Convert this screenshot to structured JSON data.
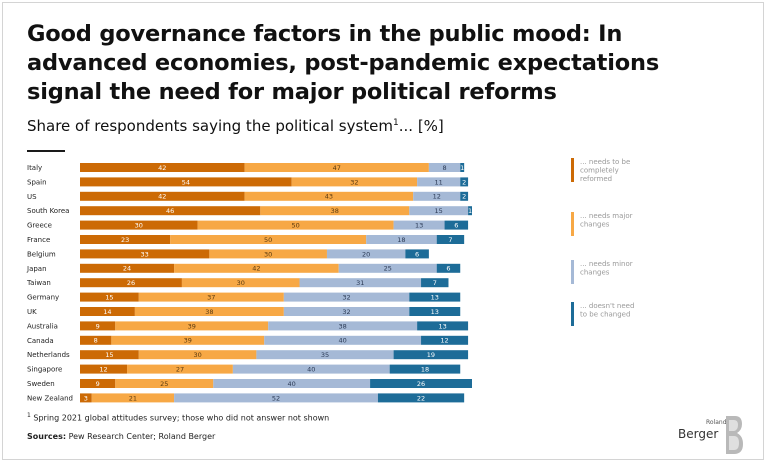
{
  "title": "Good governance factors in the public mood: In advanced economies, post-pandemic expectations signal the need for major political reforms",
  "subtitle": {
    "text": "Share of respondents saying the political system",
    "sup": "1",
    "suffix": "... [%]"
  },
  "footnote": {
    "sup": "1",
    "text": "Spring 2021 global attitudes survey; those who did not answer not shown"
  },
  "sources": {
    "label": "Sources:",
    "text": "Pew Research Center; Roland Berger"
  },
  "logo": {
    "roland": "Roland",
    "berger": "Berger",
    "mark_icon": "roland-berger-b-logo"
  },
  "colors": {
    "completely": "#cc6a05",
    "major": "#f7a845",
    "minor": "#a5b9d6",
    "none": "#1d6c98"
  },
  "chart_data": {
    "type": "bar",
    "orientation": "horizontal",
    "stacked": true,
    "categories": [
      "Italy",
      "Spain",
      "US",
      "South Korea",
      "Greece",
      "France",
      "Belgium",
      "Japan",
      "Taiwan",
      "Germany",
      "UK",
      "Australia",
      "Canada",
      "Netherlands",
      "Singapore",
      "Sweden",
      "New Zealand"
    ],
    "series": [
      {
        "key": "completely",
        "name": "... needs to be completely reformed",
        "values": [
          42,
          54,
          42,
          46,
          30,
          23,
          33,
          24,
          26,
          15,
          14,
          9,
          8,
          15,
          12,
          9,
          3
        ]
      },
      {
        "key": "major",
        "name": "... needs major changes",
        "values": [
          47,
          32,
          43,
          38,
          50,
          50,
          30,
          42,
          30,
          37,
          38,
          39,
          39,
          30,
          27,
          25,
          21
        ]
      },
      {
        "key": "minor",
        "name": "... needs minor changes",
        "values": [
          8,
          11,
          12,
          15,
          13,
          18,
          20,
          25,
          31,
          32,
          32,
          38,
          40,
          35,
          40,
          40,
          52
        ]
      },
      {
        "key": "none",
        "name": "... doesn't need to be changed",
        "values": [
          1,
          2,
          2,
          1,
          6,
          7,
          6,
          6,
          7,
          13,
          13,
          13,
          12,
          19,
          18,
          26,
          22
        ]
      }
    ],
    "xlim": [
      0,
      100
    ],
    "unit": "%",
    "legend_position": "right"
  }
}
